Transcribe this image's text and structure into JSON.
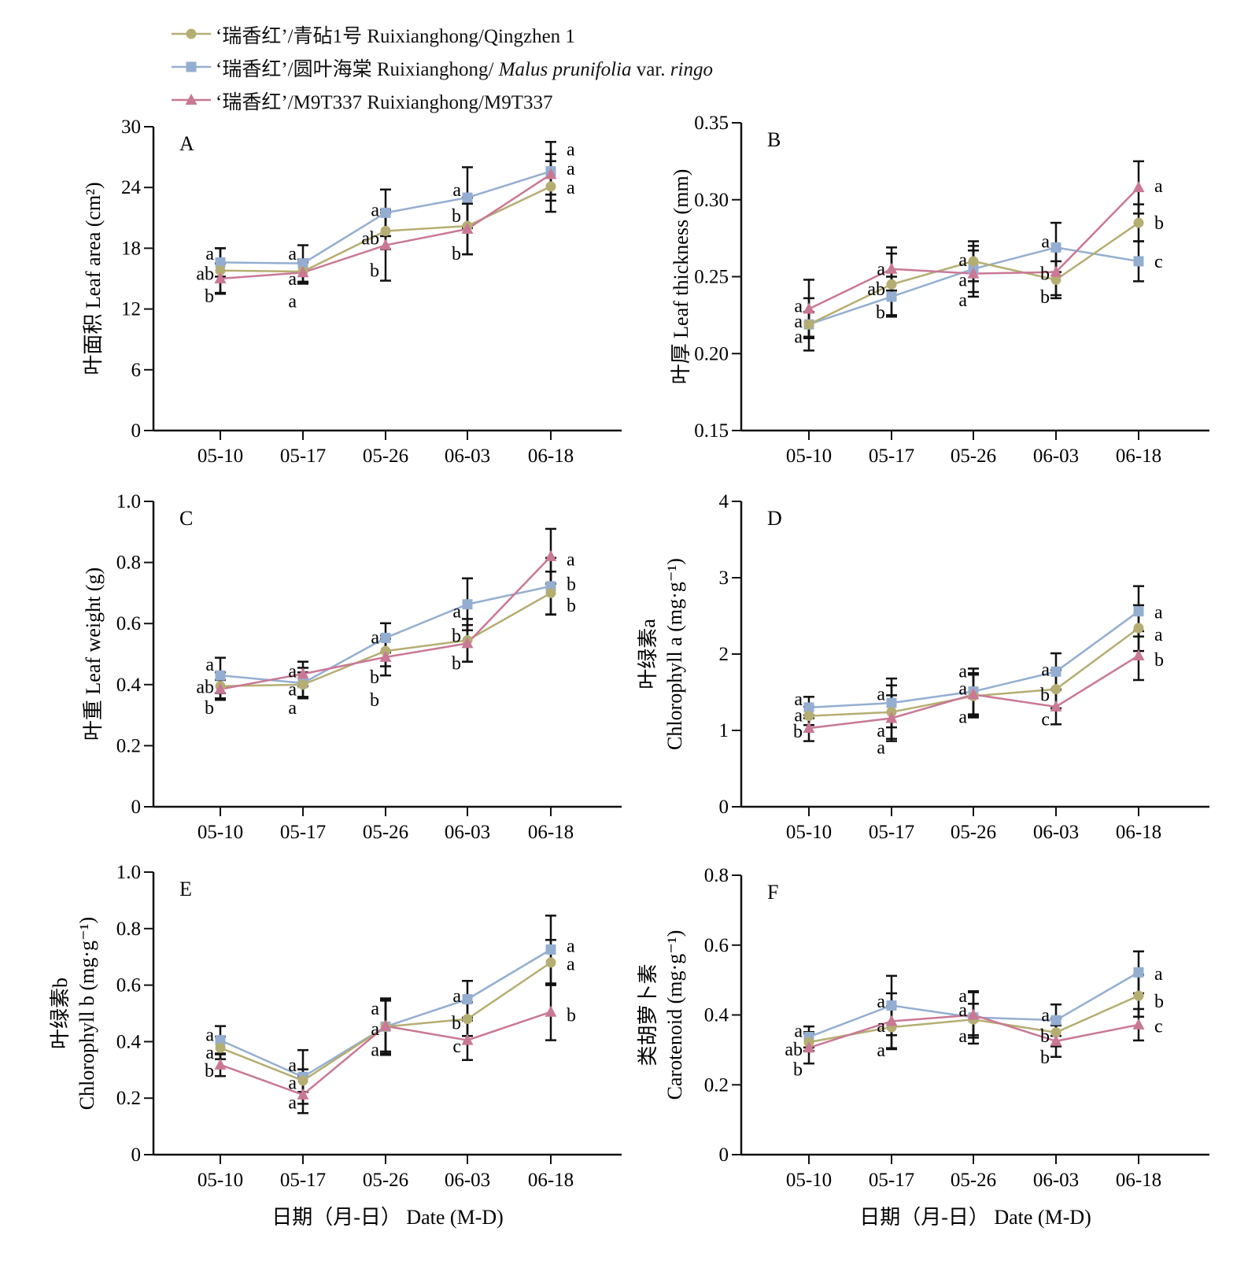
{
  "legend": {
    "series": [
      {
        "key": "qz",
        "cn": "‘瑞香红’/青砧1号",
        "en": "Ruixianghong/Qingzhen 1",
        "color": "#b5ae72",
        "marker": "circle"
      },
      {
        "key": "mp",
        "cn": "‘瑞香红’/圆叶海棠",
        "en_a": "Ruixianghong/ ",
        "en_b": "Malus prunifolia",
        "en_c": " var. ",
        "en_d": "ringo",
        "color": "#94aed1",
        "marker": "square"
      },
      {
        "key": "m9",
        "cn": "‘瑞香红’/M9T337",
        "en": "Ruixianghong/M9T337",
        "color": "#c97895",
        "marker": "triangle"
      }
    ]
  },
  "xlabel": "日期（月-日）  Date (M-D)",
  "chart_data": [
    {
      "type": "line",
      "panel": "A",
      "ylabel": "叶面积 Leaf area (cm²)",
      "categories": [
        "05-10",
        "05-17",
        "05-26",
        "06-03",
        "06-18"
      ],
      "ylim": [
        0,
        30
      ],
      "yticks": [
        "0",
        "6",
        "12",
        "18",
        "24",
        "30"
      ],
      "series": [
        {
          "key": "qz",
          "values": [
            15.8,
            15.7,
            19.7,
            20.2,
            24.1
          ],
          "errors": [
            2.2,
            1.2,
            1.8,
            2.8,
            2.5
          ]
        },
        {
          "key": "mp",
          "values": [
            16.6,
            16.5,
            21.5,
            23.0,
            25.6
          ],
          "errors": [
            1.4,
            1.8,
            2.3,
            3.0,
            2.9
          ]
        },
        {
          "key": "m9",
          "values": [
            15.0,
            15.6,
            18.3,
            19.9,
            25.3
          ],
          "errors": [
            1.5,
            1.0,
            3.5,
            2.5,
            2.0
          ]
        }
      ],
      "letters": [
        [
          {
            "t": "a",
            "y": 17.5
          },
          {
            "t": "ab",
            "y": 15.5
          },
          {
            "t": "b",
            "y": 13.3
          }
        ],
        [
          {
            "t": "a",
            "y": 17.5
          },
          {
            "t": "a",
            "y": 15.0
          },
          {
            "t": "a",
            "y": 12.8
          }
        ],
        [
          {
            "t": "a",
            "y": 21.8
          },
          {
            "t": "ab",
            "y": 19.0
          },
          {
            "t": "b",
            "y": 15.8
          }
        ],
        [
          {
            "t": "a",
            "y": 23.8
          },
          {
            "t": "b",
            "y": 21.2
          },
          {
            "t": "b",
            "y": 17.5
          }
        ],
        [
          {
            "t": "a",
            "y": 27.8
          },
          {
            "t": "a",
            "y": 25.9
          },
          {
            "t": "a",
            "y": 24.0
          }
        ]
      ]
    },
    {
      "type": "line",
      "panel": "B",
      "ylabel": "叶厚 Leaf thickness (mm)",
      "categories": [
        "05-10",
        "05-17",
        "05-26",
        "06-03",
        "06-18"
      ],
      "ylim": [
        0.15,
        0.35
      ],
      "yticks": [
        "0.15",
        "0.20",
        "0.25",
        "0.30",
        "0.35"
      ],
      "series": [
        {
          "key": "qz",
          "values": [
            0.219,
            0.245,
            0.26,
            0.248,
            0.285
          ],
          "errors": [
            0.017,
            0.02,
            0.013,
            0.012,
            0.012
          ]
        },
        {
          "key": "mp",
          "values": [
            0.219,
            0.237,
            0.255,
            0.269,
            0.26
          ],
          "errors": [
            0.008,
            0.013,
            0.015,
            0.016,
            0.013
          ]
        },
        {
          "key": "m9",
          "values": [
            0.229,
            0.255,
            0.252,
            0.253,
            0.308
          ],
          "errors": [
            0.019,
            0.014,
            0.015,
            0.015,
            0.017
          ]
        }
      ],
      "letters": [
        [
          {
            "t": "a",
            "y": 0.231
          },
          {
            "t": "a",
            "y": 0.221
          },
          {
            "t": "a",
            "y": 0.211
          }
        ],
        [
          {
            "t": "a",
            "y": 0.255
          },
          {
            "t": "ab",
            "y": 0.242
          },
          {
            "t": "b",
            "y": 0.227
          }
        ],
        [
          {
            "t": "a",
            "y": 0.261
          },
          {
            "t": "a",
            "y": 0.248
          },
          {
            "t": "a",
            "y": 0.235
          }
        ],
        [
          {
            "t": "a",
            "y": 0.273
          },
          {
            "t": "b",
            "y": 0.252
          },
          {
            "t": "b",
            "y": 0.237
          }
        ],
        [
          {
            "t": "a",
            "y": 0.309
          },
          {
            "t": "b",
            "y": 0.285
          },
          {
            "t": "c",
            "y": 0.26
          }
        ]
      ]
    },
    {
      "type": "line",
      "panel": "C",
      "ylabel": "叶重 Leaf weight (g)",
      "categories": [
        "05-10",
        "05-17",
        "05-26",
        "06-03",
        "06-18"
      ],
      "ylim": [
        0,
        1.0
      ],
      "yticks": [
        "0",
        "0.2",
        "0.4",
        "0.6",
        "0.8",
        "1.0"
      ],
      "series": [
        {
          "key": "qz",
          "values": [
            0.395,
            0.4,
            0.51,
            0.545,
            0.7
          ],
          "errors": [
            0.045,
            0.04,
            0.05,
            0.07,
            0.07
          ]
        },
        {
          "key": "mp",
          "values": [
            0.43,
            0.405,
            0.553,
            0.663,
            0.722
          ],
          "errors": [
            0.058,
            0.05,
            0.048,
            0.085,
            0.093
          ]
        },
        {
          "key": "m9",
          "values": [
            0.385,
            0.435,
            0.49,
            0.535,
            0.82
          ],
          "errors": [
            0.03,
            0.04,
            0.06,
            0.06,
            0.09
          ]
        }
      ],
      "letters": [
        [
          {
            "t": "a",
            "y": 0.467
          },
          {
            "t": "ab",
            "y": 0.393
          },
          {
            "t": "b",
            "y": 0.325
          }
        ],
        [
          {
            "t": "a",
            "y": 0.445
          },
          {
            "t": "a",
            "y": 0.385
          },
          {
            "t": "a",
            "y": 0.325
          }
        ],
        [
          {
            "t": "a",
            "y": 0.555
          },
          {
            "t": "b",
            "y": 0.425
          },
          {
            "t": "b",
            "y": 0.35
          }
        ],
        [
          {
            "t": "a",
            "y": 0.64
          },
          {
            "t": "b",
            "y": 0.56
          },
          {
            "t": "b",
            "y": 0.47
          }
        ],
        [
          {
            "t": "a",
            "y": 0.81
          },
          {
            "t": "b",
            "y": 0.73
          },
          {
            "t": "b",
            "y": 0.66
          }
        ]
      ]
    },
    {
      "type": "line",
      "panel": "D",
      "ylabel_1": "叶绿素a",
      "ylabel_2": "Chlorophyll a (mg·g⁻¹)",
      "categories": [
        "05-10",
        "05-17",
        "05-26",
        "06-03",
        "06-18"
      ],
      "ylim": [
        0,
        4
      ],
      "yticks": [
        "0",
        "1",
        "2",
        "3",
        "4"
      ],
      "series": [
        {
          "key": "qz",
          "values": [
            1.19,
            1.24,
            1.45,
            1.54,
            2.34
          ],
          "errors": [
            0.12,
            0.35,
            0.28,
            0.25,
            0.3
          ]
        },
        {
          "key": "mp",
          "values": [
            1.3,
            1.36,
            1.51,
            1.77,
            2.56
          ],
          "errors": [
            0.14,
            0.32,
            0.3,
            0.24,
            0.33
          ]
        },
        {
          "key": "m9",
          "values": [
            1.03,
            1.16,
            1.47,
            1.31,
            1.98
          ],
          "errors": [
            0.17,
            0.3,
            0.28,
            0.23,
            0.32
          ]
        }
      ],
      "letters": [
        [
          {
            "t": "a",
            "y": 1.41
          },
          {
            "t": "a",
            "y": 1.2
          },
          {
            "t": "b",
            "y": 0.99
          }
        ],
        [
          {
            "t": "a",
            "y": 1.48
          },
          {
            "t": "a",
            "y": 1.0
          },
          {
            "t": "a",
            "y": 0.78
          }
        ],
        [
          {
            "t": "a",
            "y": 1.78
          },
          {
            "t": "a",
            "y": 1.55
          },
          {
            "t": "a",
            "y": 1.18
          }
        ],
        [
          {
            "t": "a",
            "y": 1.8
          },
          {
            "t": "b",
            "y": 1.47
          },
          {
            "t": "c",
            "y": 1.15
          }
        ],
        [
          {
            "t": "a",
            "y": 2.55
          },
          {
            "t": "a",
            "y": 2.26
          },
          {
            "t": "b",
            "y": 1.93
          }
        ]
      ]
    },
    {
      "type": "line",
      "panel": "E",
      "ylabel_1": "叶绿素b",
      "ylabel_2": "Chlorophyll b (mg·g⁻¹)",
      "categories": [
        "05-10",
        "05-17",
        "05-26",
        "06-03",
        "06-18"
      ],
      "ylim": [
        0,
        1.0
      ],
      "yticks": [
        "0",
        "0.2",
        "0.4",
        "0.6",
        "0.8",
        "1.0"
      ],
      "series": [
        {
          "key": "qz",
          "values": [
            0.378,
            0.262,
            0.453,
            0.48,
            0.68
          ],
          "errors": [
            0.04,
            0.04,
            0.095,
            0.06,
            0.08
          ]
        },
        {
          "key": "mp",
          "values": [
            0.405,
            0.275,
            0.453,
            0.55,
            0.726
          ],
          "errors": [
            0.05,
            0.095,
            0.1,
            0.065,
            0.12
          ]
        },
        {
          "key": "m9",
          "values": [
            0.318,
            0.212,
            0.455,
            0.405,
            0.505
          ],
          "errors": [
            0.04,
            0.065,
            0.09,
            0.07,
            0.1
          ]
        }
      ],
      "letters": [
        [
          {
            "t": "a",
            "y": 0.425
          },
          {
            "t": "a",
            "y": 0.362
          },
          {
            "t": "b",
            "y": 0.298
          }
        ],
        [
          {
            "t": "a",
            "y": 0.318
          },
          {
            "t": "a",
            "y": 0.255
          },
          {
            "t": "a",
            "y": 0.185
          }
        ],
        [
          {
            "t": "a",
            "y": 0.518
          },
          {
            "t": "a",
            "y": 0.445
          },
          {
            "t": "a",
            "y": 0.372
          }
        ],
        [
          {
            "t": "a",
            "y": 0.562
          },
          {
            "t": "b",
            "y": 0.467
          },
          {
            "t": "c",
            "y": 0.385
          }
        ],
        [
          {
            "t": "a",
            "y": 0.74
          },
          {
            "t": "a",
            "y": 0.675
          },
          {
            "t": "b",
            "y": 0.495
          }
        ]
      ]
    },
    {
      "type": "line",
      "panel": "F",
      "ylabel_1": "类胡萝卜素",
      "ylabel_2": "Carotenoid (mg·g⁻¹)",
      "categories": [
        "05-10",
        "05-17",
        "05-26",
        "06-03",
        "06-18"
      ],
      "ylim": [
        0,
        0.8
      ],
      "yticks": [
        "0",
        "0.2",
        "0.4",
        "0.6",
        "0.8"
      ],
      "series": [
        {
          "key": "qz",
          "values": [
            0.322,
            0.365,
            0.387,
            0.35,
            0.455
          ],
          "errors": [
            0.025,
            0.06,
            0.045,
            0.04,
            0.06
          ]
        },
        {
          "key": "mp",
          "values": [
            0.337,
            0.427,
            0.393,
            0.385,
            0.522
          ],
          "errors": [
            0.03,
            0.085,
            0.075,
            0.045,
            0.06
          ]
        },
        {
          "key": "m9",
          "values": [
            0.306,
            0.382,
            0.4,
            0.325,
            0.372
          ],
          "errors": [
            0.045,
            0.08,
            0.065,
            0.045,
            0.045
          ]
        }
      ],
      "letters": [
        [
          {
            "t": "a",
            "y": 0.355
          },
          {
            "t": "ab",
            "y": 0.302
          },
          {
            "t": "b",
            "y": 0.245
          }
        ],
        [
          {
            "t": "a",
            "y": 0.44
          },
          {
            "t": "a",
            "y": 0.37
          },
          {
            "t": "a",
            "y": 0.3
          }
        ],
        [
          {
            "t": "a",
            "y": 0.455
          },
          {
            "t": "a",
            "y": 0.415
          },
          {
            "t": "a",
            "y": 0.34
          }
        ],
        [
          {
            "t": "a",
            "y": 0.4
          },
          {
            "t": "b",
            "y": 0.34
          },
          {
            "t": "b",
            "y": 0.28
          }
        ],
        [
          {
            "t": "a",
            "y": 0.518
          },
          {
            "t": "b",
            "y": 0.44
          },
          {
            "t": "c",
            "y": 0.368
          }
        ]
      ]
    }
  ]
}
